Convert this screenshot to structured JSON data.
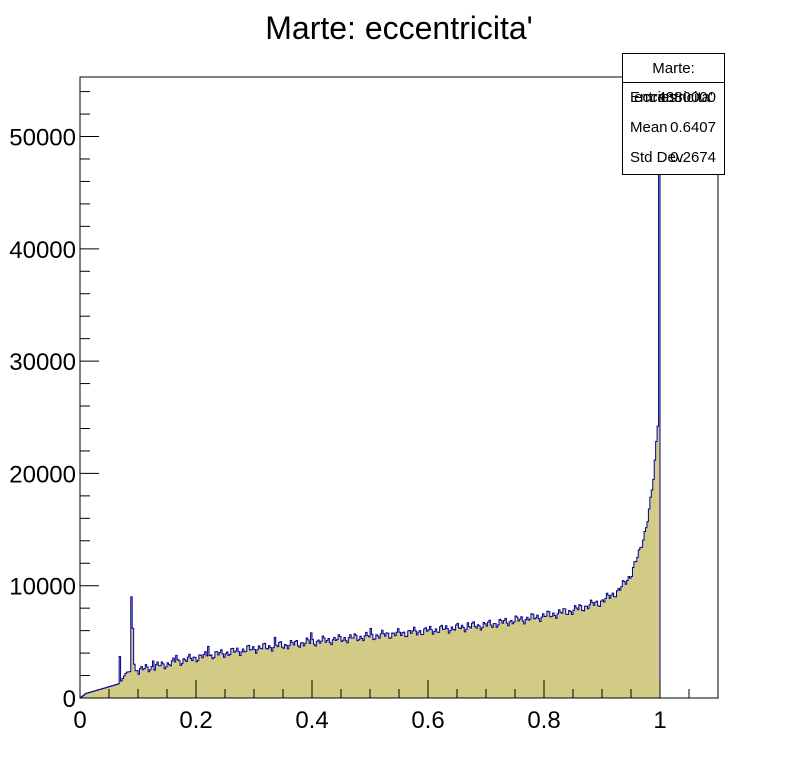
{
  "chart_data": {
    "type": "bar",
    "title": "Marte: eccentricita'",
    "xlabel": "",
    "ylabel": "",
    "xlim": [
      0,
      1.1
    ],
    "ylim": [
      0,
      55300
    ],
    "x_ticks": [
      "0",
      "0.2",
      "0.4",
      "0.6",
      "0.8",
      "1"
    ],
    "y_ticks": [
      "0",
      "10000",
      "20000",
      "30000",
      "40000",
      "50000"
    ],
    "bin_width": 0.0025,
    "fill_color": "#d2cb85",
    "line_color": "#000099",
    "stats": {
      "title": "Marte: eccentricita'",
      "rows": [
        {
          "label": "Entries",
          "value": "4380000"
        },
        {
          "label": "Mean",
          "value": "0.6407"
        },
        {
          "label": "Std Dev",
          "value": "0.2674"
        }
      ]
    },
    "profile": [
      {
        "x": 0.0,
        "y": 0
      },
      {
        "x": 0.01,
        "y": 400
      },
      {
        "x": 0.03,
        "y": 700
      },
      {
        "x": 0.05,
        "y": 1000
      },
      {
        "x": 0.069,
        "y": 1300
      },
      {
        "x": 0.08,
        "y": 2300
      },
      {
        "x": 0.1,
        "y": 2450
      },
      {
        "x": 0.2,
        "y": 3600
      },
      {
        "x": 0.3,
        "y": 4400
      },
      {
        "x": 0.4,
        "y": 5000
      },
      {
        "x": 0.5,
        "y": 5500
      },
      {
        "x": 0.6,
        "y": 6000
      },
      {
        "x": 0.7,
        "y": 6500
      },
      {
        "x": 0.8,
        "y": 7300
      },
      {
        "x": 0.85,
        "y": 7800
      },
      {
        "x": 0.9,
        "y": 8600
      },
      {
        "x": 0.93,
        "y": 9600
      },
      {
        "x": 0.95,
        "y": 11000
      },
      {
        "x": 0.965,
        "y": 13000
      },
      {
        "x": 0.975,
        "y": 15000
      },
      {
        "x": 0.9825,
        "y": 17000
      },
      {
        "x": 0.99,
        "y": 20000
      },
      {
        "x": 0.9975,
        "y": 25500
      }
    ],
    "spikes": [
      {
        "x": 0.0675,
        "y": 3700
      },
      {
        "x": 0.0875,
        "y": 9000
      },
      {
        "x": 0.09,
        "y": 6200
      },
      {
        "x": 0.0925,
        "y": 3000
      },
      {
        "x": 0.125,
        "y": 3300
      },
      {
        "x": 0.165,
        "y": 3800
      },
      {
        "x": 0.22,
        "y": 4600
      },
      {
        "x": 0.335,
        "y": 5400
      },
      {
        "x": 0.3975,
        "y": 5800
      },
      {
        "x": 0.5,
        "y": 6200
      },
      {
        "x": 0.6675,
        "y": 6700
      },
      {
        "x": 0.75,
        "y": 7300
      },
      {
        "x": 0.86,
        "y": 8300
      },
      {
        "x": 0.9975,
        "y": 52000
      }
    ],
    "last_bin": {
      "x": 0.9975,
      "y": 52000
    }
  }
}
